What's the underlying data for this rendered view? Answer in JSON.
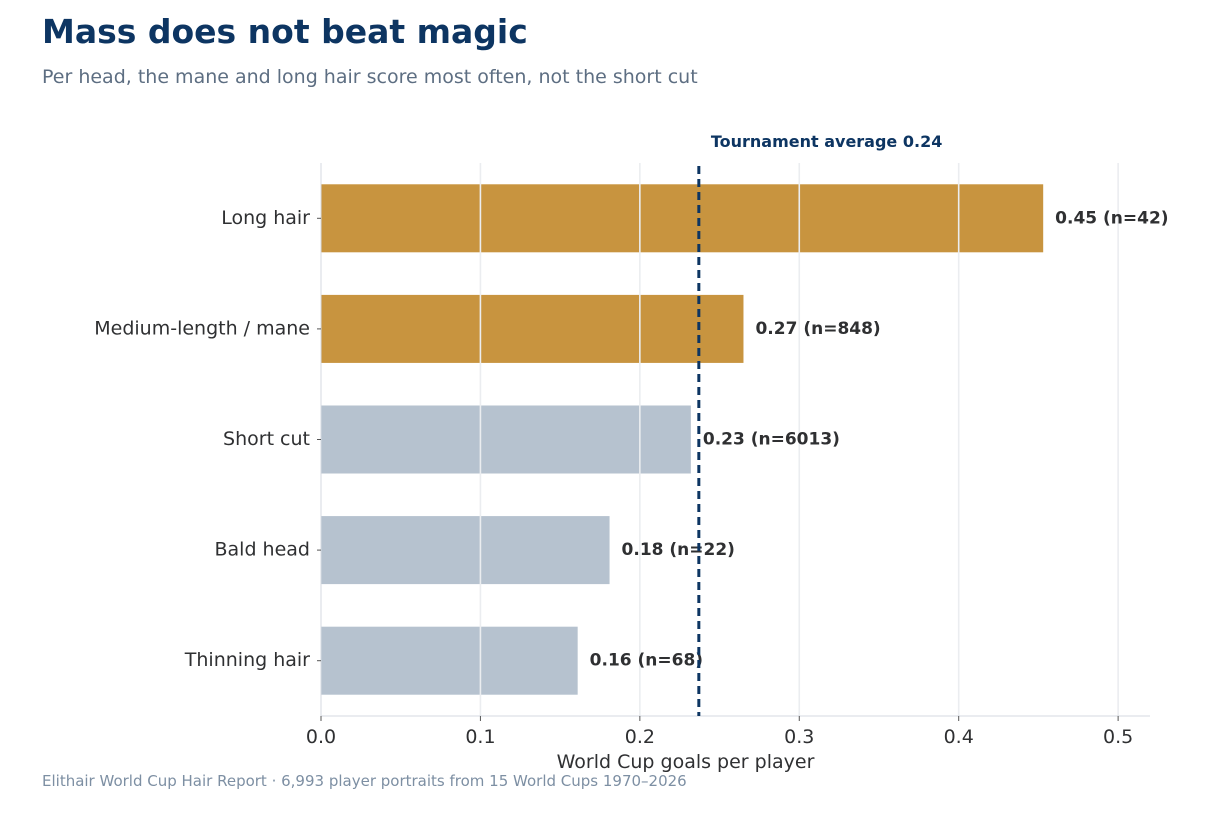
{
  "chart_data": {
    "type": "bar",
    "orientation": "horizontal",
    "title": "Mass does not beat magic",
    "subtitle": "Per head, the mane and long hair score most often, not the short cut",
    "xlabel": "World Cup goals per player",
    "ylabel": "",
    "xlim": [
      0,
      0.52
    ],
    "xticks": [
      "0.0",
      "0.1",
      "0.2",
      "0.3",
      "0.4",
      "0.5"
    ],
    "grid": "vertical",
    "categories": [
      "Long hair",
      "Medium-length / mane",
      "Short cut",
      "Bald head",
      "Thinning hair"
    ],
    "values": [
      0.453,
      0.265,
      0.232,
      0.181,
      0.161
    ],
    "value_labels": [
      "0.45  (n=42)",
      "0.27  (n=848)",
      "0.23  (n=6013)",
      "0.18  (n=22)",
      "0.16  (n=68)"
    ],
    "highlight": [
      true,
      true,
      false,
      false,
      false
    ],
    "colors": {
      "highlight": "#c8943f",
      "base": "#b6c2cf",
      "reference": "#0d3562",
      "grid": "#ebedf0",
      "text": "#2f3032"
    },
    "reference_line": {
      "value": 0.237,
      "label": "Tournament average 0.24"
    },
    "source": "Elithair World Cup Hair Report  ·  6,993 player portraits from 15 World Cups 1970–2026"
  }
}
